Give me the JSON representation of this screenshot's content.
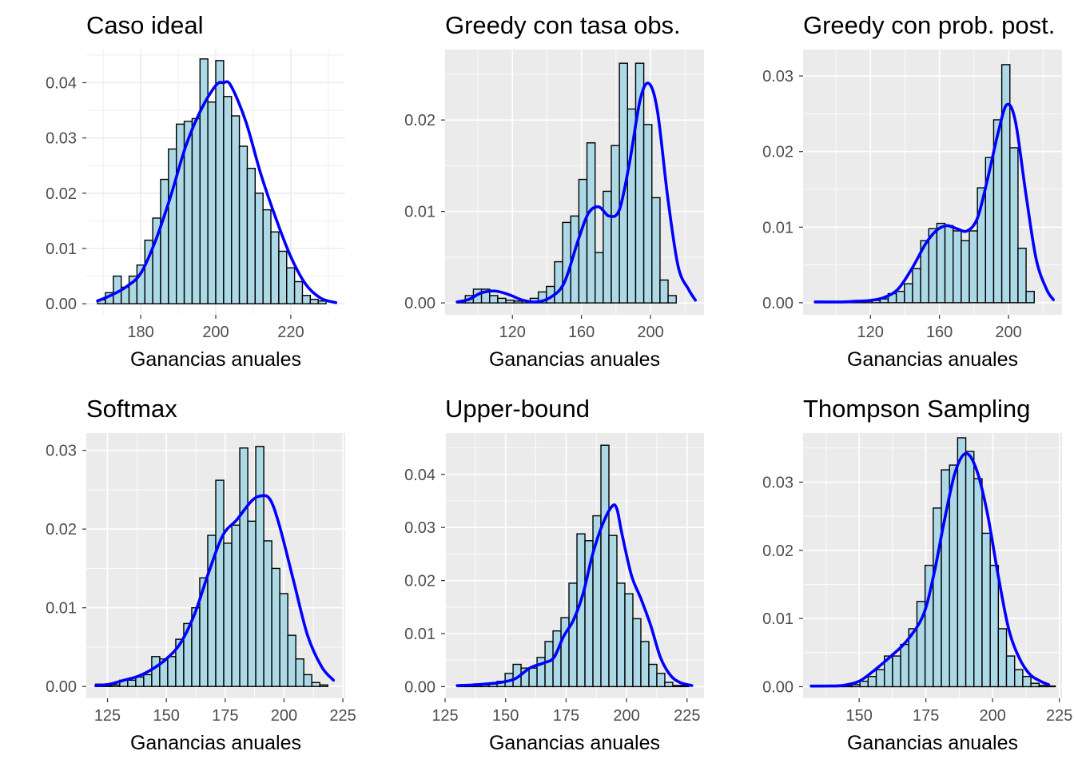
{
  "style": {
    "panel_bg": "#EBEBEB",
    "grid_major": "#FFFFFF",
    "bar_fill": "#ADD8E6",
    "bar_outline": "#000000",
    "density_color": "#0000FF",
    "tick_text": "#4D4D4D"
  },
  "chart_data": [
    {
      "type": "bar",
      "title": "Caso ideal",
      "xlabel": "Ganancias anuales",
      "ylabel": "",
      "xlim": [
        165.5,
        234.5
      ],
      "ylim": [
        -0.002,
        0.046
      ],
      "xticks": [
        180,
        200,
        220
      ],
      "yticks": [
        0.0,
        0.01,
        0.02,
        0.03,
        0.04
      ],
      "ytick_labels": [
        "0.00",
        "0.01",
        "0.02",
        "0.03",
        "0.04"
      ],
      "background": "white",
      "grid": true,
      "bin_start": 168.5,
      "bin_width": 2.1,
      "bars": [
        0.0007,
        0.002,
        0.005,
        0.003,
        0.005,
        0.007,
        0.0115,
        0.0155,
        0.0225,
        0.028,
        0.0325,
        0.033,
        0.0335,
        0.0443,
        0.0365,
        0.044,
        0.0375,
        0.034,
        0.0285,
        0.0245,
        0.02,
        0.017,
        0.013,
        0.0095,
        0.0065,
        0.004,
        0.0015,
        0.0008,
        0.0005
      ],
      "density": {
        "x": [
          168.5,
          172,
          176,
          180,
          184,
          188,
          192,
          196,
          200,
          202,
          204,
          208,
          212,
          216,
          220,
          224,
          228,
          232
        ],
        "y": [
          0.0005,
          0.0015,
          0.003,
          0.0055,
          0.0115,
          0.0195,
          0.0285,
          0.035,
          0.0395,
          0.04,
          0.0395,
          0.033,
          0.0235,
          0.0155,
          0.0085,
          0.0035,
          0.001,
          0.0002
        ]
      }
    },
    {
      "type": "bar",
      "title": "Greedy con tasa obs.",
      "xlabel": "Ganancias anuales",
      "ylabel": "",
      "xlim": [
        81,
        231
      ],
      "ylim": [
        -0.0013,
        0.0277
      ],
      "xticks": [
        120,
        160,
        200
      ],
      "yticks": [
        0.0,
        0.01,
        0.02
      ],
      "ytick_labels": [
        "0.00",
        "0.01",
        "0.02"
      ],
      "background": "grey",
      "grid": true,
      "bin_start": 88,
      "bin_width": 4.7,
      "bars": [
        0.0002,
        0.0008,
        0.0015,
        0.0015,
        0.0008,
        0.0005,
        0.0003,
        0.0002,
        0.0002,
        0.0005,
        0.0012,
        0.0018,
        0.0045,
        0.0088,
        0.0095,
        0.0135,
        0.0175,
        0.0055,
        0.0122,
        0.0172,
        0.0262,
        0.0212,
        0.0262,
        0.0195,
        0.0115,
        0.0025,
        0.0008
      ],
      "density": {
        "x": [
          88,
          95,
          102,
          110,
          118,
          126,
          134,
          142,
          150,
          158,
          164,
          170,
          176,
          182,
          188,
          194,
          199,
          204,
          210,
          216,
          222,
          226
        ],
        "y": [
          0.0001,
          0.0004,
          0.0011,
          0.0013,
          0.0009,
          0.0003,
          0.0001,
          0.0006,
          0.0022,
          0.0068,
          0.0098,
          0.0105,
          0.0095,
          0.0102,
          0.0155,
          0.0222,
          0.024,
          0.021,
          0.0115,
          0.004,
          0.0015,
          0.0003
        ]
      }
    },
    {
      "type": "bar",
      "title": "Greedy con prob. post.",
      "xlabel": "Ganancias anuales",
      "ylabel": "",
      "xlim": [
        81,
        231
      ],
      "ylim": [
        -0.0016,
        0.0335
      ],
      "xticks": [
        120,
        160,
        200
      ],
      "yticks": [
        0.0,
        0.01,
        0.02,
        0.03
      ],
      "ytick_labels": [
        "0.00",
        "0.01",
        "0.02",
        "0.03"
      ],
      "background": "grey",
      "grid": true,
      "bin_start": 88,
      "bin_width": 4.7,
      "bars": [
        0.0002,
        0.0001,
        0.0001,
        0.0001,
        0.0001,
        0.0001,
        0.0002,
        0.0003,
        0.0005,
        0.0012,
        0.0015,
        0.0025,
        0.0045,
        0.0082,
        0.0098,
        0.0105,
        0.0102,
        0.0095,
        0.0082,
        0.0095,
        0.0152,
        0.0192,
        0.0242,
        0.0315,
        0.0205,
        0.0072,
        0.0015
      ],
      "density": {
        "x": [
          88,
          96,
          104,
          112,
          120,
          128,
          136,
          144,
          152,
          158,
          164,
          170,
          176,
          182,
          188,
          194,
          199,
          204,
          210,
          216,
          222,
          226
        ],
        "y": [
          0.0001,
          0.0001,
          0.0001,
          0.0002,
          0.0003,
          0.0007,
          0.0018,
          0.0045,
          0.0078,
          0.0095,
          0.0102,
          0.0098,
          0.0095,
          0.0112,
          0.0165,
          0.0225,
          0.0262,
          0.024,
          0.0145,
          0.0058,
          0.0018,
          0.0004
        ]
      }
    },
    {
      "type": "bar",
      "title": "Softmax",
      "xlabel": "Ganancias anuales",
      "ylabel": "",
      "xlim": [
        116,
        226
      ],
      "ylim": [
        -0.0015,
        0.0322
      ],
      "xticks": [
        125,
        150,
        175,
        200,
        225
      ],
      "yticks": [
        0.0,
        0.01,
        0.02,
        0.03
      ],
      "ytick_labels": [
        "0.00",
        "0.01",
        "0.02",
        "0.03"
      ],
      "background": "grey",
      "grid": true,
      "bin_start": 120,
      "bin_width": 3.4,
      "bars": [
        0.0003,
        0.0001,
        0.0002,
        0.0008,
        0.0008,
        0.0012,
        0.0015,
        0.0038,
        0.0035,
        0.0038,
        0.006,
        0.008,
        0.01,
        0.0138,
        0.0192,
        0.0262,
        0.0182,
        0.0205,
        0.0303,
        0.021,
        0.0305,
        0.0185,
        0.015,
        0.0118,
        0.0065,
        0.0035,
        0.0015,
        0.0005,
        0.0002
      ],
      "density": {
        "x": [
          120,
          126,
          132,
          138,
          144,
          150,
          156,
          162,
          168,
          174,
          180,
          186,
          190,
          194,
          198,
          204,
          210,
          216,
          221
        ],
        "y": [
          0.0001,
          0.0003,
          0.0008,
          0.0013,
          0.0022,
          0.0035,
          0.0055,
          0.0092,
          0.0145,
          0.0192,
          0.0212,
          0.0235,
          0.0242,
          0.0238,
          0.0205,
          0.0135,
          0.0065,
          0.0025,
          0.0008
        ]
      }
    },
    {
      "type": "bar",
      "title": "Upper-bound",
      "xlabel": "Ganancias anuales",
      "ylabel": "",
      "xlim": [
        125,
        232
      ],
      "ylim": [
        -0.0022,
        0.0478
      ],
      "xticks": [
        125,
        150,
        175,
        200,
        225
      ],
      "yticks": [
        0.0,
        0.01,
        0.02,
        0.03,
        0.04
      ],
      "ytick_labels": [
        "0.00",
        "0.01",
        "0.02",
        "0.03",
        "0.04"
      ],
      "background": "grey",
      "grid": true,
      "bin_start": 130,
      "bin_width": 3.3,
      "bars": [
        0.0002,
        0.0002,
        0.0005,
        0.0003,
        0.0005,
        0.001,
        0.0025,
        0.0042,
        0.0035,
        0.0035,
        0.0055,
        0.0085,
        0.0105,
        0.013,
        0.0195,
        0.0288,
        0.0275,
        0.0322,
        0.0455,
        0.0285,
        0.0195,
        0.0175,
        0.0128,
        0.0085,
        0.0042,
        0.0025,
        0.0008,
        0.0002,
        0.0002
      ],
      "density": {
        "x": [
          130,
          136,
          142,
          148,
          154,
          160,
          166,
          170,
          174,
          178,
          182,
          186,
          190,
          194,
          196,
          198,
          202,
          206,
          210,
          214,
          218,
          222,
          227
        ],
        "y": [
          0.0002,
          0.0003,
          0.0005,
          0.0008,
          0.0015,
          0.0035,
          0.0045,
          0.0055,
          0.0095,
          0.0125,
          0.0175,
          0.025,
          0.0305,
          0.034,
          0.0335,
          0.029,
          0.021,
          0.0165,
          0.0115,
          0.0055,
          0.0022,
          0.0008,
          0.0002
        ]
      }
    },
    {
      "type": "bar",
      "title": "Thompson Sampling",
      "xlabel": "Ganancias anuales",
      "ylabel": "",
      "xlim": [
        129,
        226
      ],
      "ylim": [
        -0.0017,
        0.0372
      ],
      "xticks": [
        150,
        175,
        200,
        225
      ],
      "yticks": [
        0.0,
        0.01,
        0.02,
        0.03
      ],
      "ytick_labels": [
        "0.00",
        "0.01",
        "0.02",
        "0.03"
      ],
      "background": "grey",
      "grid": true,
      "bin_start": 132,
      "bin_width": 3.05,
      "bars": [
        0.0002,
        0.0001,
        0.0001,
        0.0001,
        0.0001,
        0.0003,
        0.0008,
        0.0015,
        0.0025,
        0.0045,
        0.0045,
        0.0062,
        0.0085,
        0.0125,
        0.0178,
        0.0262,
        0.0318,
        0.0325,
        0.0365,
        0.0345,
        0.0305,
        0.0225,
        0.0178,
        0.0085,
        0.0045,
        0.0025,
        0.0015,
        0.0005,
        0.0002,
        0.0001
      ],
      "density": {
        "x": [
          132,
          138,
          144,
          150,
          156,
          162,
          168,
          174,
          178,
          182,
          186,
          190,
          194,
          198,
          202,
          206,
          210,
          214,
          218,
          221
        ],
        "y": [
          0.0001,
          0.0001,
          0.0002,
          0.0008,
          0.0025,
          0.0045,
          0.0068,
          0.0105,
          0.0165,
          0.0245,
          0.0315,
          0.0342,
          0.0318,
          0.0255,
          0.0165,
          0.0085,
          0.0042,
          0.0018,
          0.0008,
          0.0003
        ]
      }
    }
  ]
}
